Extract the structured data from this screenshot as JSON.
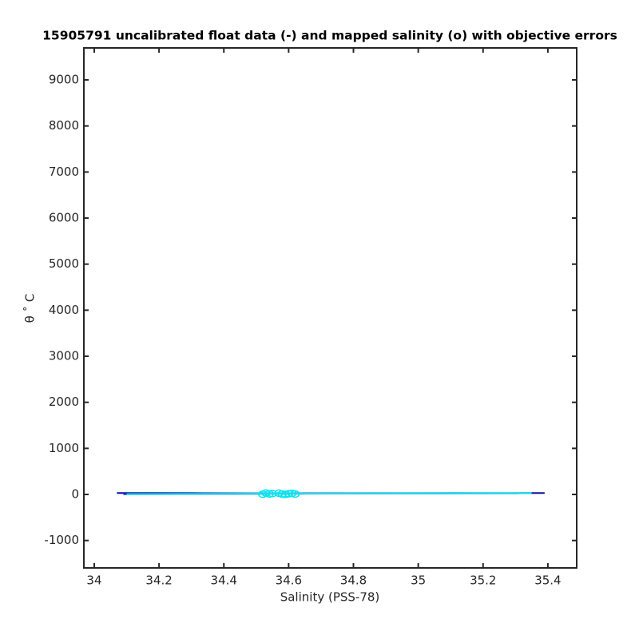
{
  "chart_data": {
    "type": "line",
    "title": "15905791 uncalibrated float data (-) and mapped salinity (o) with objective errors",
    "xlabel": "Salinity (PSS-78)",
    "ylabel": "θ ˚ C",
    "xlim": [
      33.968,
      35.489
    ],
    "xticks": [
      34,
      34.2,
      34.4,
      34.6,
      34.8,
      35,
      35.2,
      35.4
    ],
    "ylim": [
      -1595,
      9694
    ],
    "yticks": [
      -1000,
      0,
      1000,
      2000,
      3000,
      4000,
      5000,
      6000,
      7000,
      8000,
      9000
    ],
    "series": [
      {
        "color": "#0a0aa0",
        "marker": "none",
        "x": [
          34.07,
          34.3,
          34.55,
          34.8,
          35.1,
          35.39
        ],
        "values": [
          30,
          28,
          22,
          25,
          28,
          30
        ]
      },
      {
        "color": "#1e3cdc",
        "marker": "none",
        "x": [
          34.09,
          34.4,
          34.6,
          34.9,
          35.31
        ],
        "values": [
          5,
          12,
          15,
          22,
          25
        ]
      },
      {
        "color": "#00e5ee",
        "marker": "none",
        "x": [
          34.1,
          34.35,
          34.55,
          34.8,
          35.05,
          35.35
        ],
        "values": [
          10,
          14,
          18,
          20,
          24,
          27
        ]
      },
      {
        "color": "#00e5ee",
        "marker": "o",
        "x": [
          34.52,
          34.54,
          34.55,
          34.57,
          34.58,
          34.6,
          34.61,
          34.62,
          34.53,
          34.59
        ],
        "values": [
          5,
          12,
          20,
          28,
          8,
          15,
          25,
          10,
          30,
          2
        ]
      }
    ]
  }
}
